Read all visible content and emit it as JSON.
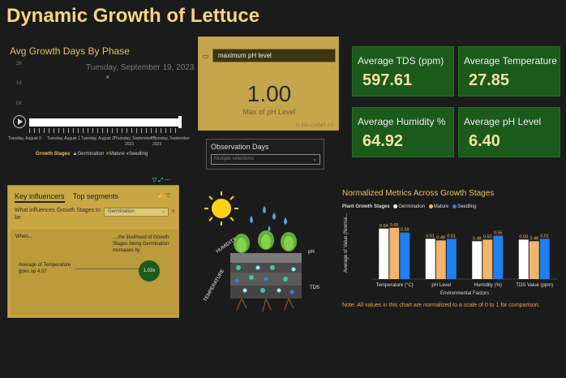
{
  "title": "Dynamic Growth of Lettuce",
  "avg_growth": {
    "title": "Avg Growth Days By Phase",
    "y_ticks": [
      "2K",
      "1K",
      "0K"
    ],
    "tooltip_date": "Tuesday, September 19, 2023",
    "close_glyph": "×",
    "dates": [
      "Tuesday, August 0",
      "Tuesday, August 1",
      "Tuesday, August 2",
      "Thursday, September 0",
      "Thursday, September"
    ],
    "dates2": [
      "2023",
      "2023"
    ],
    "legend_title": "Growth Stages",
    "legend": [
      "Germination",
      "Mature",
      "Seedling"
    ]
  },
  "ph_card": {
    "query": "maximum pH level",
    "value": "1.00",
    "subtitle": "Max of pH Level",
    "footer": "Is this useful?"
  },
  "observation": {
    "title": "Observation Days",
    "placeholder": "Multiple selections",
    "chevron": "⌄"
  },
  "kpis": [
    {
      "label": "Average TDS (ppm)",
      "value": "597.61"
    },
    {
      "label": "Average Temperature",
      "value": "27.85"
    },
    {
      "label": "Average Humidity %",
      "value": "64.92"
    },
    {
      "label": "Average pH Level",
      "value": "6.40"
    }
  ],
  "key_influencers": {
    "tab1": "Key influencers",
    "tab2": "Top segments",
    "question": "What influences Growth Stages to be",
    "selected": "Germination",
    "qmark": "?",
    "when": "When...",
    "likelihood": "....the likelihood of Growth Stages being Germination increases by",
    "factor": "Average of Temperature goes up 4.07",
    "multiplier": "1.03x"
  },
  "illustration": {
    "labels": [
      "HUMIDITY",
      "pH",
      "TEMPERATURE",
      "TDS"
    ]
  },
  "colors": {
    "gold": "#e8c15a",
    "germination": "#ffffff",
    "mature": "#f2b56b",
    "seedling": "#1e7ff0"
  },
  "chart_data": {
    "type": "bar",
    "title": "Normalized Metrics Across Growth Stages",
    "legend_title": "Plant Growth Stages",
    "xlabel": "Environmental Factors",
    "ylabel": "Average of Value (Normal...",
    "categories": [
      "Temperature (°C)",
      "pH Level",
      "Humidity (%)",
      "TDS Value (ppm)"
    ],
    "series": [
      {
        "name": "Germination",
        "values": [
          0.64,
          0.51,
          0.48,
          0.5
        ]
      },
      {
        "name": "Mature",
        "values": [
          0.65,
          0.49,
          0.5,
          0.48
        ]
      },
      {
        "name": "Seedling",
        "values": [
          0.59,
          0.51,
          0.55,
          0.51
        ]
      }
    ],
    "ylim": [
      0,
      1
    ],
    "note": "Note: All values in this chart are normalized to a scale of 0 to 1 for comparison."
  }
}
